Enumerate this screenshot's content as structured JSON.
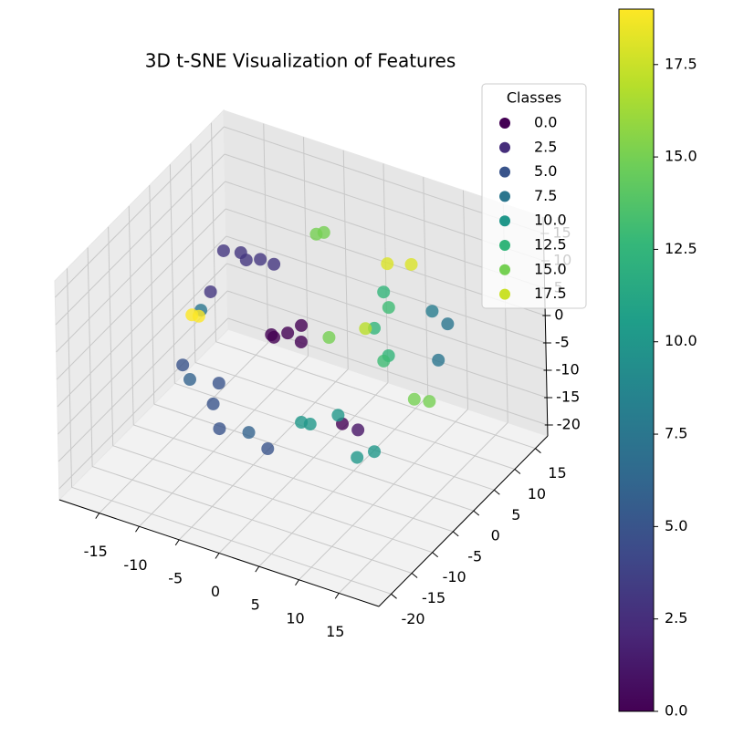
{
  "chart_data": {
    "type": "scatter3d",
    "title": "3D t-SNE Visualization of Features",
    "xlim": [
      -20,
      20
    ],
    "ylim": [
      -23,
      18
    ],
    "zlim": [
      -22,
      18
    ],
    "xticks": [
      -15,
      -10,
      -5,
      0,
      5,
      10,
      15
    ],
    "yticks": [
      -20,
      -15,
      -10,
      -5,
      0,
      5,
      10,
      15
    ],
    "zticks": [
      -20,
      -15,
      -10,
      -5,
      0,
      5,
      10,
      15
    ],
    "grid": true,
    "colormap": [
      "#440154",
      "#482878",
      "#3e4989",
      "#31688e",
      "#26828e",
      "#1f9e89",
      "#35b779",
      "#6ece58",
      "#b5de2b",
      "#fde725"
    ],
    "clim": [
      0,
      19
    ],
    "colorbar_ticks": [
      {
        "value": 0,
        "label": "0.0"
      },
      {
        "value": 2.5,
        "label": "2.5"
      },
      {
        "value": 5,
        "label": "5.0"
      },
      {
        "value": 7.5,
        "label": "7.5"
      },
      {
        "value": 10,
        "label": "10.0"
      },
      {
        "value": 12.5,
        "label": "12.5"
      },
      {
        "value": 15,
        "label": "15.0"
      },
      {
        "value": 17.5,
        "label": "17.5"
      }
    ],
    "legend_title": "Classes",
    "legend": [
      {
        "value": 0,
        "label": "0.0"
      },
      {
        "value": 2.5,
        "label": "2.5"
      },
      {
        "value": 5,
        "label": "5.0"
      },
      {
        "value": 7.5,
        "label": "7.5"
      },
      {
        "value": 10,
        "label": "10.0"
      },
      {
        "value": 12.5,
        "label": "12.5"
      },
      {
        "value": 15,
        "label": "15.0"
      },
      {
        "value": 17.5,
        "label": "17.5"
      }
    ],
    "legend_position": "upper right",
    "x": [
      -2.6,
      -3.5,
      -0.5,
      11.0,
      -13.3,
      -16.3,
      -10.3,
      -13.7,
      -9.5,
      -4.4,
      -0.1,
      6.3,
      11.6,
      -12.9,
      14.1,
      8.0,
      16.6,
      9.8,
      2.6,
      9.0,
      5.1,
      -4.4,
      17.1,
      1.7,
      6.8,
      -13.3,
      4.3,
      -1.5,
      -4.5,
      -14.5,
      -11,
      -8,
      3,
      10,
      7,
      15,
      4,
      8,
      16,
      -6,
      5,
      -12,
      12,
      -3
    ],
    "y": [
      -0.7,
      -2.3,
      -1.5,
      -13.8,
      10.0,
      10.3,
      10.9,
      2.1,
      -12.8,
      -13.9,
      -22.1,
      -22.8,
      10.6,
      -1.8,
      3.5,
      -15.8,
      -16.9,
      -12.5,
      12.5,
      1.3,
      5.4,
      11.8,
      -4.5,
      1.0,
      11.3,
      -3.2,
      4.8,
      0.5,
      -1,
      11,
      9,
      -14,
      -21,
      10,
      -16,
      -18,
      11,
      2,
      -6,
      13,
      9,
      -4,
      -12,
      -18
    ],
    "z": [
      0,
      0,
      0,
      0,
      0,
      0,
      0,
      0,
      0,
      0,
      0,
      0,
      0,
      0,
      0,
      0,
      0,
      0,
      0,
      0,
      0,
      8,
      0,
      0,
      8,
      0,
      0,
      1,
      -1,
      0,
      2,
      -1,
      0,
      2,
      0,
      -1,
      -1,
      -2,
      1,
      6,
      9,
      1,
      -2,
      0
    ],
    "values": [
      0,
      0,
      0,
      0,
      3,
      3,
      3,
      3,
      5,
      5,
      5,
      5,
      7.5,
      7.5,
      7.5,
      10,
      10,
      10,
      12.5,
      12.5,
      12.5,
      15,
      15,
      15,
      18,
      19,
      17,
      0,
      0,
      3,
      3,
      6,
      6,
      8,
      10,
      10,
      13,
      13,
      15,
      15,
      18,
      19,
      1,
      5
    ]
  }
}
